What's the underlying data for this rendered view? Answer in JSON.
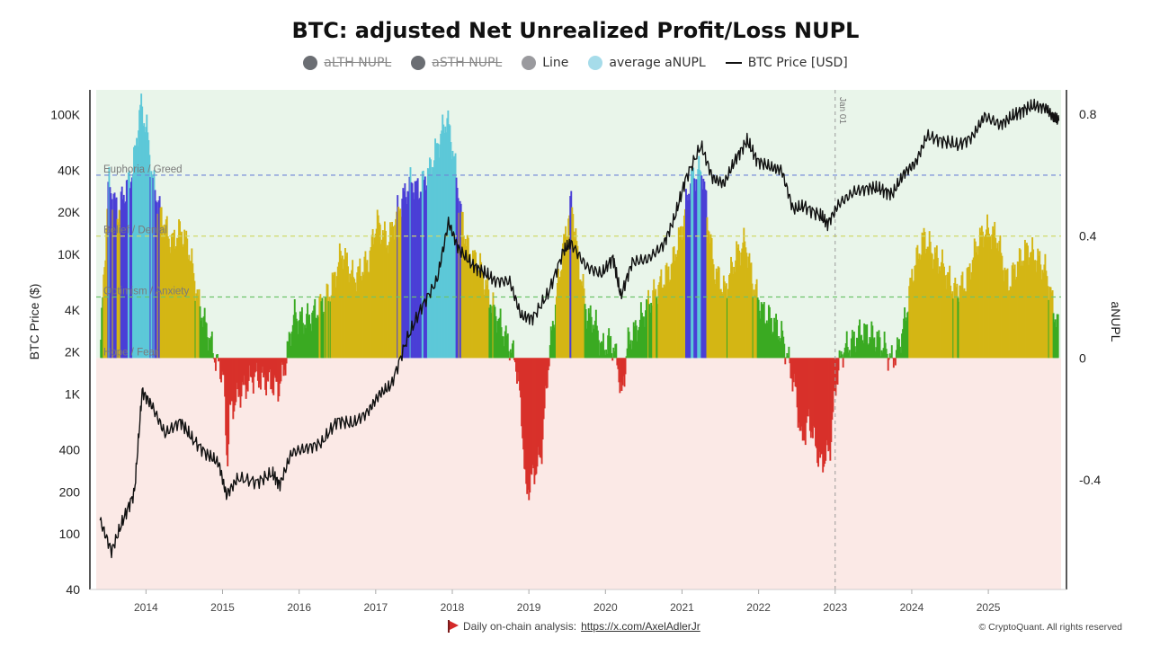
{
  "chart_data": {
    "type": "area",
    "title": "BTC: adjusted Net Unrealized Profit/Loss NUPL",
    "legend": [
      {
        "label": "aLTH NUPL",
        "color": "#6b6e73",
        "shape": "dot",
        "hidden": true
      },
      {
        "label": "aSTH NUPL",
        "color": "#6b6e73",
        "shape": "dot",
        "hidden": true
      },
      {
        "label": "Line",
        "color": "#9a9a9e",
        "shape": "dot",
        "hidden": false
      },
      {
        "label": "average aNUPL",
        "color": "#a6dcea",
        "shape": "dot",
        "hidden": false
      },
      {
        "label": "BTC Price [USD]",
        "color": "#111111",
        "shape": "line",
        "hidden": false
      }
    ],
    "left_axis": {
      "label": "BTC Price ($)",
      "scale": "log",
      "range": [
        40,
        150000
      ],
      "ticks": [
        100000,
        40000,
        20000,
        10000,
        4000,
        2000,
        1000,
        400,
        200,
        100,
        40
      ],
      "tick_labels": [
        "100K",
        "40K",
        "20K",
        "10K",
        "4K",
        "2K",
        "1K",
        "400",
        "200",
        "100",
        "40"
      ]
    },
    "right_axis": {
      "label": "aNUPL",
      "range": [
        -0.76,
        0.88
      ],
      "ticks": [
        0.8,
        0.4,
        0,
        -0.4
      ],
      "tick_labels": [
        "0.8",
        "0.4",
        "0",
        "-0.4"
      ]
    },
    "x_axis": {
      "range": [
        2013.35,
        2025.95
      ],
      "ticks": [
        2014,
        2015,
        2016,
        2017,
        2018,
        2019,
        2020,
        2021,
        2022,
        2023,
        2024,
        2025
      ],
      "tick_labels": [
        "2014",
        "2015",
        "2016",
        "2017",
        "2018",
        "2019",
        "2020",
        "2021",
        "2022",
        "2023",
        "2024",
        "2025"
      ]
    },
    "zones": [
      {
        "label": "Euphoria / Greed",
        "value": 0.6,
        "color": "#6d84d6"
      },
      {
        "label": "Belief / Denial",
        "value": 0.4,
        "color": "#cfd86a"
      },
      {
        "label": "Optimism / Anxiety",
        "value": 0.2,
        "color": "#6cc46a"
      },
      {
        "label": "Hope / Fear",
        "value": 0,
        "color": "#888888"
      }
    ],
    "marker": {
      "label": "Jan 01",
      "x": 2023.0
    },
    "bands": [
      {
        "name": "euphoria",
        "min": 0.6,
        "color": "#5dc8d8"
      },
      {
        "name": "greed",
        "min": 0.5,
        "color": "#4a3fd6"
      },
      {
        "name": "belief",
        "min": 0.2,
        "color": "#d4b615"
      },
      {
        "name": "optimism",
        "min": 0.0,
        "color": "#3aaa22"
      },
      {
        "name": "capitulation",
        "min": -1,
        "color": "#d8312a"
      }
    ],
    "anupl_series": {
      "name": "average aNUPL",
      "points": [
        [
          2013.4,
          0.06
        ],
        [
          2013.5,
          0.58
        ],
        [
          2013.62,
          0.48
        ],
        [
          2013.72,
          0.55
        ],
        [
          2013.82,
          0.62
        ],
        [
          2013.92,
          0.83
        ],
        [
          2014.0,
          0.75
        ],
        [
          2014.08,
          0.58
        ],
        [
          2014.2,
          0.46
        ],
        [
          2014.32,
          0.38
        ],
        [
          2014.45,
          0.42
        ],
        [
          2014.55,
          0.36
        ],
        [
          2014.68,
          0.18
        ],
        [
          2014.8,
          0.08
        ],
        [
          2014.92,
          -0.02
        ],
        [
          2015.0,
          -0.05
        ],
        [
          2015.05,
          -0.35
        ],
        [
          2015.08,
          -0.18
        ],
        [
          2015.2,
          -0.12
        ],
        [
          2015.4,
          -0.06
        ],
        [
          2015.6,
          -0.08
        ],
        [
          2015.72,
          -0.1
        ],
        [
          2015.8,
          -0.03
        ],
        [
          2015.92,
          0.14
        ],
        [
          2016.05,
          0.12
        ],
        [
          2016.2,
          0.15
        ],
        [
          2016.4,
          0.22
        ],
        [
          2016.55,
          0.35
        ],
        [
          2016.7,
          0.26
        ],
        [
          2016.9,
          0.32
        ],
        [
          2017.0,
          0.45
        ],
        [
          2017.15,
          0.38
        ],
        [
          2017.3,
          0.5
        ],
        [
          2017.45,
          0.58
        ],
        [
          2017.55,
          0.55
        ],
        [
          2017.7,
          0.62
        ],
        [
          2017.8,
          0.7
        ],
        [
          2017.92,
          0.79
        ],
        [
          2018.0,
          0.68
        ],
        [
          2018.1,
          0.48
        ],
        [
          2018.2,
          0.35
        ],
        [
          2018.35,
          0.3
        ],
        [
          2018.5,
          0.18
        ],
        [
          2018.6,
          0.12
        ],
        [
          2018.72,
          0.05
        ],
        [
          2018.82,
          -0.01
        ],
        [
          2018.9,
          -0.2
        ],
        [
          2018.95,
          -0.45
        ],
        [
          2019.05,
          -0.38
        ],
        [
          2019.15,
          -0.32
        ],
        [
          2019.25,
          0.0
        ],
        [
          2019.35,
          0.2
        ],
        [
          2019.45,
          0.38
        ],
        [
          2019.55,
          0.52
        ],
        [
          2019.62,
          0.35
        ],
        [
          2019.75,
          0.14
        ],
        [
          2019.85,
          0.12
        ],
        [
          2019.95,
          0.03
        ],
        [
          2020.05,
          0.06
        ],
        [
          2020.15,
          -0.01
        ],
        [
          2020.2,
          -0.14
        ],
        [
          2020.28,
          0.05
        ],
        [
          2020.4,
          0.1
        ],
        [
          2020.55,
          0.18
        ],
        [
          2020.7,
          0.24
        ],
        [
          2020.85,
          0.3
        ],
        [
          2020.98,
          0.42
        ],
        [
          2021.1,
          0.58
        ],
        [
          2021.25,
          0.62
        ],
        [
          2021.3,
          0.52
        ],
        [
          2021.4,
          0.3
        ],
        [
          2021.55,
          0.22
        ],
        [
          2021.7,
          0.34
        ],
        [
          2021.82,
          0.38
        ],
        [
          2021.92,
          0.24
        ],
        [
          2022.05,
          0.15
        ],
        [
          2022.18,
          0.12
        ],
        [
          2022.3,
          0.07
        ],
        [
          2022.4,
          -0.03
        ],
        [
          2022.48,
          -0.12
        ],
        [
          2022.55,
          -0.28
        ],
        [
          2022.65,
          -0.2
        ],
        [
          2022.8,
          -0.35
        ],
        [
          2022.92,
          -0.3
        ],
        [
          2023.0,
          -0.08
        ],
        [
          2023.08,
          0.02
        ],
        [
          2023.2,
          0.05
        ],
        [
          2023.35,
          0.09
        ],
        [
          2023.5,
          0.07
        ],
        [
          2023.65,
          0.03
        ],
        [
          2023.72,
          -0.01
        ],
        [
          2023.8,
          0.02
        ],
        [
          2023.9,
          0.12
        ],
        [
          2024.0,
          0.28
        ],
        [
          2024.15,
          0.4
        ],
        [
          2024.25,
          0.35
        ],
        [
          2024.4,
          0.3
        ],
        [
          2024.55,
          0.22
        ],
        [
          2024.7,
          0.25
        ],
        [
          2024.85,
          0.38
        ],
        [
          2024.95,
          0.42
        ],
        [
          2025.1,
          0.4
        ],
        [
          2025.25,
          0.24
        ],
        [
          2025.35,
          0.3
        ],
        [
          2025.5,
          0.36
        ],
        [
          2025.65,
          0.32
        ],
        [
          2025.75,
          0.28
        ],
        [
          2025.82,
          0.19
        ],
        [
          2025.9,
          0.1
        ]
      ]
    },
    "price_series": {
      "name": "BTC Price [USD]",
      "points": [
        [
          2013.4,
          125
        ],
        [
          2013.55,
          75
        ],
        [
          2013.7,
          125
        ],
        [
          2013.85,
          200
        ],
        [
          2013.95,
          1050
        ],
        [
          2014.08,
          820
        ],
        [
          2014.25,
          520
        ],
        [
          2014.45,
          640
        ],
        [
          2014.6,
          480
        ],
        [
          2014.8,
          370
        ],
        [
          2014.95,
          320
        ],
        [
          2015.05,
          190
        ],
        [
          2015.2,
          250
        ],
        [
          2015.45,
          235
        ],
        [
          2015.65,
          270
        ],
        [
          2015.75,
          225
        ],
        [
          2015.9,
          380
        ],
        [
          2016.1,
          410
        ],
        [
          2016.3,
          450
        ],
        [
          2016.5,
          650
        ],
        [
          2016.7,
          610
        ],
        [
          2016.9,
          750
        ],
        [
          2017.05,
          1000
        ],
        [
          2017.2,
          1150
        ],
        [
          2017.4,
          2400
        ],
        [
          2017.6,
          4200
        ],
        [
          2017.8,
          6500
        ],
        [
          2017.95,
          17000
        ],
        [
          2018.08,
          11000
        ],
        [
          2018.25,
          8500
        ],
        [
          2018.4,
          7500
        ],
        [
          2018.55,
          6500
        ],
        [
          2018.75,
          6400
        ],
        [
          2018.9,
          3600
        ],
        [
          2019.05,
          3500
        ],
        [
          2019.25,
          5200
        ],
        [
          2019.45,
          10500
        ],
        [
          2019.55,
          12000
        ],
        [
          2019.75,
          8200
        ],
        [
          2019.95,
          7200
        ],
        [
          2020.1,
          9500
        ],
        [
          2020.2,
          5000
        ],
        [
          2020.35,
          8800
        ],
        [
          2020.55,
          9200
        ],
        [
          2020.75,
          11500
        ],
        [
          2020.9,
          18000
        ],
        [
          2021.05,
          35000
        ],
        [
          2021.25,
          60000
        ],
        [
          2021.4,
          35000
        ],
        [
          2021.55,
          32000
        ],
        [
          2021.7,
          48000
        ],
        [
          2021.85,
          65000
        ],
        [
          2021.98,
          47000
        ],
        [
          2022.15,
          42000
        ],
        [
          2022.3,
          40000
        ],
        [
          2022.45,
          21000
        ],
        [
          2022.6,
          22000
        ],
        [
          2022.8,
          19000
        ],
        [
          2022.9,
          16500
        ],
        [
          2023.05,
          23000
        ],
        [
          2023.25,
          28000
        ],
        [
          2023.45,
          30000
        ],
        [
          2023.6,
          29000
        ],
        [
          2023.75,
          27000
        ],
        [
          2023.9,
          38000
        ],
        [
          2024.05,
          45000
        ],
        [
          2024.2,
          70000
        ],
        [
          2024.4,
          65000
        ],
        [
          2024.6,
          60000
        ],
        [
          2024.8,
          70000
        ],
        [
          2024.95,
          97000
        ],
        [
          2025.15,
          85000
        ],
        [
          2025.3,
          95000
        ],
        [
          2025.45,
          108000
        ],
        [
          2025.6,
          115000
        ],
        [
          2025.75,
          112000
        ],
        [
          2025.85,
          95000
        ],
        [
          2025.92,
          90000
        ]
      ]
    }
  },
  "footer": {
    "analysis_label": "Daily on-chain analysis:",
    "analysis_link": "https://x.com/AxelAdlerJr",
    "copyright": "© CryptoQuant. All rights reserved"
  }
}
